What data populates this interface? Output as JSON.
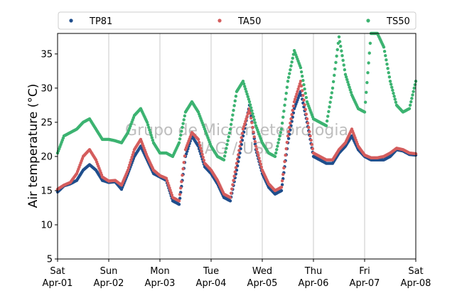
{
  "chart_data": {
    "type": "scatter",
    "title": "",
    "xlabel": "",
    "ylabel": "Air temperature (°C)",
    "ylim": [
      5,
      38
    ],
    "xlim": [
      "2017-04-01 00:00",
      "2017-04-08 00:00"
    ],
    "yticks": [
      5,
      10,
      15,
      20,
      25,
      30,
      35
    ],
    "xticks": [
      {
        "date": "2017-04-01",
        "day": "Sat",
        "label": "Apr-01"
      },
      {
        "date": "2017-04-02",
        "day": "Sun",
        "label": "Apr-02"
      },
      {
        "date": "2017-04-03",
        "day": "Mon",
        "label": "Apr-03"
      },
      {
        "date": "2017-04-04",
        "day": "Tue",
        "label": "Apr-04"
      },
      {
        "date": "2017-04-05",
        "day": "Wed",
        "label": "Apr-05"
      },
      {
        "date": "2017-04-06",
        "day": "Thu",
        "label": "Apr-06"
      },
      {
        "date": "2017-04-07",
        "day": "Fri",
        "label": "Apr-07"
      },
      {
        "date": "2017-04-08",
        "day": "Sat",
        "label": "Apr-08"
      }
    ],
    "grid": "vertical",
    "legend_position": "top",
    "watermark": [
      "Grupo de Micrometeorologia",
      "IAG / USP"
    ],
    "series": [
      {
        "name": "TP81",
        "color": "#1f4e8c",
        "points": [
          [
            "2017-04-01 00:00",
            14.8
          ],
          [
            "2017-04-01 03:00",
            15.7
          ],
          [
            "2017-04-01 06:00",
            16.0
          ],
          [
            "2017-04-01 09:00",
            16.5
          ],
          [
            "2017-04-01 12:00",
            18.0
          ],
          [
            "2017-04-01 15:00",
            18.8
          ],
          [
            "2017-04-01 18:00",
            18.0
          ],
          [
            "2017-04-01 21:00",
            16.5
          ],
          [
            "2017-04-02 00:00",
            16.2
          ],
          [
            "2017-04-02 03:00",
            16.3
          ],
          [
            "2017-04-02 06:00",
            15.2
          ],
          [
            "2017-04-02 09:00",
            17.5
          ],
          [
            "2017-04-02 12:00",
            20.0
          ],
          [
            "2017-04-02 15:00",
            21.5
          ],
          [
            "2017-04-02 18:00",
            19.5
          ],
          [
            "2017-04-02 21:00",
            17.5
          ],
          [
            "2017-04-03 00:00",
            17.0
          ],
          [
            "2017-04-03 03:00",
            16.5
          ],
          [
            "2017-04-03 06:00",
            13.5
          ],
          [
            "2017-04-03 09:00",
            13.0
          ],
          [
            "2017-04-03 12:00",
            20.0
          ],
          [
            "2017-04-03 15:00",
            23.0
          ],
          [
            "2017-04-03 18:00",
            21.5
          ],
          [
            "2017-04-03 21:00",
            18.5
          ],
          [
            "2017-04-04 00:00",
            17.5
          ],
          [
            "2017-04-04 03:00",
            16.0
          ],
          [
            "2017-04-04 06:00",
            14.0
          ],
          [
            "2017-04-04 09:00",
            13.5
          ],
          [
            "2017-04-04 12:00",
            18.0
          ],
          [
            "2017-04-04 15:00",
            23.0
          ],
          [
            "2017-04-04 18:00",
            27.5
          ],
          [
            "2017-04-04 21:00",
            21.0
          ],
          [
            "2017-04-05 00:00",
            17.5
          ],
          [
            "2017-04-05 03:00",
            15.5
          ],
          [
            "2017-04-05 06:00",
            14.5
          ],
          [
            "2017-04-05 09:00",
            15.0
          ],
          [
            "2017-04-05 12:00",
            22.0
          ],
          [
            "2017-04-05 15:00",
            27.0
          ],
          [
            "2017-04-05 18:00",
            29.5
          ],
          [
            "2017-04-05 21:00",
            25.0
          ],
          [
            "2017-04-06 00:00",
            20.0
          ],
          [
            "2017-04-06 03:00",
            19.5
          ],
          [
            "2017-04-06 06:00",
            19.0
          ],
          [
            "2017-04-06 09:00",
            19.0
          ],
          [
            "2017-04-06 12:00",
            20.5
          ],
          [
            "2017-04-06 15:00",
            21.5
          ],
          [
            "2017-04-06 18:00",
            23.0
          ],
          [
            "2017-04-06 21:00",
            21.0
          ],
          [
            "2017-04-07 00:00",
            20.0
          ],
          [
            "2017-04-07 03:00",
            19.5
          ],
          [
            "2017-04-07 06:00",
            19.5
          ],
          [
            "2017-04-07 09:00",
            19.5
          ],
          [
            "2017-04-07 12:00",
            20.0
          ],
          [
            "2017-04-07 15:00",
            21.0
          ],
          [
            "2017-04-07 18:00",
            20.8
          ],
          [
            "2017-04-07 21:00",
            20.3
          ],
          [
            "2017-04-08 00:00",
            20.2
          ]
        ]
      },
      {
        "name": "TA50",
        "color": "#d45d5d",
        "points": [
          [
            "2017-04-01 00:00",
            15.2
          ],
          [
            "2017-04-01 03:00",
            15.8
          ],
          [
            "2017-04-01 06:00",
            16.2
          ],
          [
            "2017-04-01 09:00",
            17.5
          ],
          [
            "2017-04-01 12:00",
            20.0
          ],
          [
            "2017-04-01 15:00",
            21.0
          ],
          [
            "2017-04-01 18:00",
            19.5
          ],
          [
            "2017-04-01 21:00",
            17.0
          ],
          [
            "2017-04-02 00:00",
            16.4
          ],
          [
            "2017-04-02 03:00",
            16.5
          ],
          [
            "2017-04-02 06:00",
            15.8
          ],
          [
            "2017-04-02 09:00",
            18.0
          ],
          [
            "2017-04-02 12:00",
            21.0
          ],
          [
            "2017-04-02 15:00",
            22.5
          ],
          [
            "2017-04-02 18:00",
            20.0
          ],
          [
            "2017-04-02 21:00",
            18.0
          ],
          [
            "2017-04-03 00:00",
            17.2
          ],
          [
            "2017-04-03 03:00",
            16.8
          ],
          [
            "2017-04-03 06:00",
            14.0
          ],
          [
            "2017-04-03 09:00",
            13.5
          ],
          [
            "2017-04-03 12:00",
            21.0
          ],
          [
            "2017-04-03 15:00",
            23.5
          ],
          [
            "2017-04-03 18:00",
            22.5
          ],
          [
            "2017-04-03 21:00",
            19.0
          ],
          [
            "2017-04-04 00:00",
            18.0
          ],
          [
            "2017-04-04 03:00",
            16.5
          ],
          [
            "2017-04-04 06:00",
            14.5
          ],
          [
            "2017-04-04 09:00",
            14.0
          ],
          [
            "2017-04-04 12:00",
            19.0
          ],
          [
            "2017-04-04 15:00",
            24.0
          ],
          [
            "2017-04-04 18:00",
            27.0
          ],
          [
            "2017-04-04 21:00",
            21.5
          ],
          [
            "2017-04-05 00:00",
            18.0
          ],
          [
            "2017-04-05 03:00",
            16.0
          ],
          [
            "2017-04-05 06:00",
            15.0
          ],
          [
            "2017-04-05 09:00",
            15.5
          ],
          [
            "2017-04-05 12:00",
            23.0
          ],
          [
            "2017-04-05 15:00",
            28.0
          ],
          [
            "2017-04-05 18:00",
            31.0
          ],
          [
            "2017-04-05 21:00",
            25.5
          ],
          [
            "2017-04-06 00:00",
            20.5
          ],
          [
            "2017-04-06 03:00",
            20.0
          ],
          [
            "2017-04-06 06:00",
            19.5
          ],
          [
            "2017-04-06 09:00",
            19.5
          ],
          [
            "2017-04-06 12:00",
            21.0
          ],
          [
            "2017-04-06 15:00",
            22.0
          ],
          [
            "2017-04-06 18:00",
            24.0
          ],
          [
            "2017-04-06 21:00",
            21.5
          ],
          [
            "2017-04-07 00:00",
            20.2
          ],
          [
            "2017-04-07 03:00",
            19.8
          ],
          [
            "2017-04-07 06:00",
            19.8
          ],
          [
            "2017-04-07 09:00",
            20.0
          ],
          [
            "2017-04-07 12:00",
            20.5
          ],
          [
            "2017-04-07 15:00",
            21.2
          ],
          [
            "2017-04-07 18:00",
            21.0
          ],
          [
            "2017-04-07 21:00",
            20.5
          ],
          [
            "2017-04-08 00:00",
            20.4
          ]
        ]
      },
      {
        "name": "TS50",
        "color": "#3cb371",
        "points": [
          [
            "2017-04-01 00:00",
            20.5
          ],
          [
            "2017-04-01 03:00",
            23.0
          ],
          [
            "2017-04-01 06:00",
            23.5
          ],
          [
            "2017-04-01 09:00",
            24.0
          ],
          [
            "2017-04-01 12:00",
            25.0
          ],
          [
            "2017-04-01 15:00",
            25.5
          ],
          [
            "2017-04-01 18:00",
            24.0
          ],
          [
            "2017-04-01 21:00",
            22.5
          ],
          [
            "2017-04-02 00:00",
            22.5
          ],
          [
            "2017-04-02 03:00",
            22.3
          ],
          [
            "2017-04-02 06:00",
            22.0
          ],
          [
            "2017-04-02 09:00",
            23.5
          ],
          [
            "2017-04-02 12:00",
            26.0
          ],
          [
            "2017-04-02 15:00",
            27.0
          ],
          [
            "2017-04-02 18:00",
            25.0
          ],
          [
            "2017-04-02 21:00",
            22.0
          ],
          [
            "2017-04-03 00:00",
            20.5
          ],
          [
            "2017-04-03 03:00",
            20.5
          ],
          [
            "2017-04-03 06:00",
            20.0
          ],
          [
            "2017-04-03 09:00",
            22.0
          ],
          [
            "2017-04-03 12:00",
            26.5
          ],
          [
            "2017-04-03 15:00",
            28.0
          ],
          [
            "2017-04-03 18:00",
            26.5
          ],
          [
            "2017-04-03 21:00",
            24.0
          ],
          [
            "2017-04-04 00:00",
            21.5
          ],
          [
            "2017-04-04 03:00",
            20.0
          ],
          [
            "2017-04-04 06:00",
            19.5
          ],
          [
            "2017-04-04 09:00",
            24.0
          ],
          [
            "2017-04-04 12:00",
            29.5
          ],
          [
            "2017-04-04 15:00",
            31.0
          ],
          [
            "2017-04-04 18:00",
            28.0
          ],
          [
            "2017-04-04 21:00",
            24.5
          ],
          [
            "2017-04-05 00:00",
            22.0
          ],
          [
            "2017-04-05 03:00",
            20.5
          ],
          [
            "2017-04-05 06:00",
            20.0
          ],
          [
            "2017-04-05 09:00",
            24.0
          ],
          [
            "2017-04-05 12:00",
            31.0
          ],
          [
            "2017-04-05 15:00",
            35.5
          ],
          [
            "2017-04-05 18:00",
            33.0
          ],
          [
            "2017-04-05 21:00",
            28.0
          ],
          [
            "2017-04-06 00:00",
            25.5
          ],
          [
            "2017-04-06 03:00",
            25.0
          ],
          [
            "2017-04-06 06:00",
            24.5
          ],
          [
            "2017-04-06 09:00",
            30.0
          ],
          [
            "2017-04-06 12:00",
            37.5
          ],
          [
            "2017-04-06 15:00",
            32.0
          ],
          [
            "2017-04-06 18:00",
            29.0
          ],
          [
            "2017-04-06 21:00",
            27.0
          ],
          [
            "2017-04-07 00:00",
            26.5
          ],
          [
            "2017-04-07 03:00",
            38.0
          ],
          [
            "2017-04-07 06:00",
            38.0
          ],
          [
            "2017-04-07 09:00",
            36.0
          ],
          [
            "2017-04-07 12:00",
            31.0
          ],
          [
            "2017-04-07 15:00",
            27.5
          ],
          [
            "2017-04-07 18:00",
            26.5
          ],
          [
            "2017-04-07 21:00",
            27.0
          ],
          [
            "2017-04-08 00:00",
            31.0
          ]
        ]
      }
    ]
  }
}
